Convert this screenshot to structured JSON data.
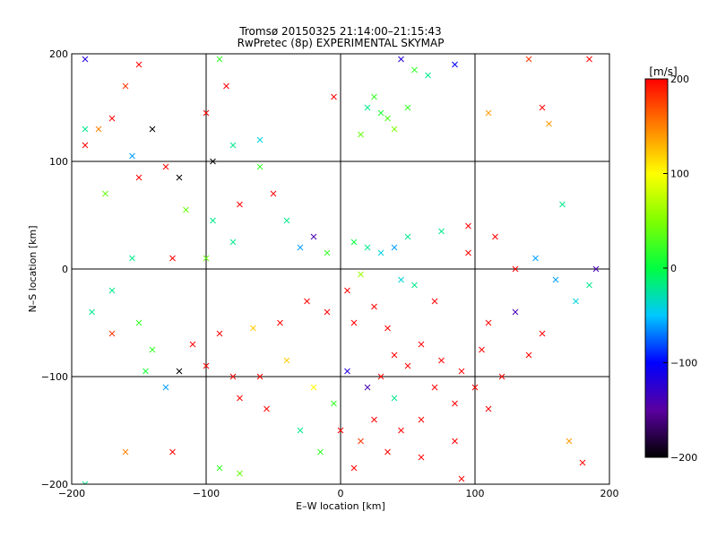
{
  "chart_data": {
    "type": "scatter",
    "title": "Tromsø 20150325 21:14:00–21:15:43",
    "subtitle": "RwPretec (8p) EXPERIMENTAL SKYMAP",
    "xlabel": "E–W location [km]",
    "ylabel": "N–S location [km]",
    "xlim": [
      -200,
      200
    ],
    "ylim": [
      -200,
      200
    ],
    "xticks": [
      -200,
      -100,
      0,
      100,
      200
    ],
    "yticks": [
      -200,
      -100,
      0,
      100,
      200
    ],
    "grid": true,
    "colorbar": {
      "label": "[m/s]",
      "min": -200,
      "max": 200,
      "ticks": [
        200,
        100,
        0,
        -100,
        -200
      ],
      "placement": "right"
    },
    "markers": [
      "point",
      "x"
    ],
    "points": [
      {
        "x": 185,
        "y": 195,
        "v": 200,
        "m": "x"
      },
      {
        "x": 140,
        "y": 195,
        "v": 180,
        "m": "x"
      },
      {
        "x": 55,
        "y": 185,
        "v": 20,
        "m": "x"
      },
      {
        "x": 65,
        "y": 180,
        "v": -20,
        "m": "x"
      },
      {
        "x": 85,
        "y": 190,
        "v": -100,
        "m": "x"
      },
      {
        "x": 45,
        "y": 195,
        "v": -120,
        "m": "x"
      },
      {
        "x": 25,
        "y": 160,
        "v": 20,
        "m": "x"
      },
      {
        "x": 30,
        "y": 145,
        "v": 10,
        "m": "x"
      },
      {
        "x": 35,
        "y": 140,
        "v": 30,
        "m": "x"
      },
      {
        "x": 20,
        "y": 150,
        "v": -20,
        "m": "x"
      },
      {
        "x": 40,
        "y": 130,
        "v": 50,
        "m": "x"
      },
      {
        "x": 15,
        "y": 125,
        "v": 40,
        "m": "x"
      },
      {
        "x": 50,
        "y": 150,
        "v": 20,
        "m": "x"
      },
      {
        "x": 110,
        "y": 145,
        "v": 140,
        "m": "x"
      },
      {
        "x": 150,
        "y": 150,
        "v": 200,
        "m": "x"
      },
      {
        "x": 155,
        "y": 135,
        "v": 140,
        "m": "x"
      },
      {
        "x": -190,
        "y": 195,
        "v": -120,
        "m": "x"
      },
      {
        "x": -150,
        "y": 190,
        "v": 200,
        "m": "x"
      },
      {
        "x": -160,
        "y": 170,
        "v": 180,
        "m": "x"
      },
      {
        "x": -190,
        "y": 130,
        "v": -20,
        "m": "x"
      },
      {
        "x": -180,
        "y": 130,
        "v": 150,
        "m": "x"
      },
      {
        "x": -170,
        "y": 140,
        "v": 200,
        "m": "x"
      },
      {
        "x": -140,
        "y": 130,
        "v": -200,
        "m": "x"
      },
      {
        "x": -100,
        "y": 145,
        "v": 200,
        "m": "x"
      },
      {
        "x": -90,
        "y": 195,
        "v": 20,
        "m": "x"
      },
      {
        "x": -85,
        "y": 170,
        "v": 200,
        "m": "x"
      },
      {
        "x": -80,
        "y": 115,
        "v": -20,
        "m": "x"
      },
      {
        "x": -60,
        "y": 120,
        "v": -40,
        "m": "x"
      },
      {
        "x": -155,
        "y": 105,
        "v": -60,
        "m": "x"
      },
      {
        "x": -190,
        "y": 115,
        "v": 200,
        "m": "x"
      },
      {
        "x": -130,
        "y": 95,
        "v": 200,
        "m": "x"
      },
      {
        "x": -150,
        "y": 85,
        "v": 200,
        "m": "x"
      },
      {
        "x": -120,
        "y": 85,
        "v": -200,
        "m": "x"
      },
      {
        "x": -175,
        "y": 70,
        "v": 40,
        "m": "x"
      },
      {
        "x": -115,
        "y": 55,
        "v": 40,
        "m": "x"
      },
      {
        "x": -95,
        "y": 45,
        "v": -20,
        "m": "x"
      },
      {
        "x": -75,
        "y": 60,
        "v": 200,
        "m": "x"
      },
      {
        "x": -50,
        "y": 70,
        "v": 200,
        "m": "x"
      },
      {
        "x": -40,
        "y": 45,
        "v": -20,
        "m": "x"
      },
      {
        "x": -30,
        "y": 20,
        "v": -60,
        "m": "x"
      },
      {
        "x": -20,
        "y": 30,
        "v": -140,
        "m": "x"
      },
      {
        "x": -10,
        "y": 15,
        "v": 20,
        "m": "x"
      },
      {
        "x": 10,
        "y": 25,
        "v": 0,
        "m": "x"
      },
      {
        "x": 20,
        "y": 20,
        "v": -20,
        "m": "x"
      },
      {
        "x": 30,
        "y": 15,
        "v": -40,
        "m": "x"
      },
      {
        "x": 40,
        "y": 20,
        "v": -60,
        "m": "x"
      },
      {
        "x": 50,
        "y": 30,
        "v": -20,
        "m": "x"
      },
      {
        "x": 45,
        "y": -10,
        "v": -40,
        "m": "x"
      },
      {
        "x": 55,
        "y": -15,
        "v": -20,
        "m": "x"
      },
      {
        "x": 15,
        "y": -5,
        "v": 60,
        "m": "x"
      },
      {
        "x": 5,
        "y": -20,
        "v": 200,
        "m": "x"
      },
      {
        "x": 25,
        "y": -35,
        "v": 200,
        "m": "x"
      },
      {
        "x": 10,
        "y": -50,
        "v": 200,
        "m": "x"
      },
      {
        "x": 35,
        "y": -55,
        "v": 200,
        "m": "x"
      },
      {
        "x": -10,
        "y": -40,
        "v": 200,
        "m": "x"
      },
      {
        "x": -25,
        "y": -30,
        "v": 200,
        "m": "x"
      },
      {
        "x": 60,
        "y": -70,
        "v": 200,
        "m": "x"
      },
      {
        "x": 75,
        "y": -85,
        "v": 200,
        "m": "x"
      },
      {
        "x": 90,
        "y": -95,
        "v": 200,
        "m": "x"
      },
      {
        "x": 50,
        "y": -90,
        "v": 200,
        "m": "x"
      },
      {
        "x": 70,
        "y": -110,
        "v": 200,
        "m": "x"
      },
      {
        "x": 85,
        "y": -125,
        "v": 200,
        "m": "x"
      },
      {
        "x": 60,
        "y": -140,
        "v": 200,
        "m": "x"
      },
      {
        "x": 40,
        "y": -120,
        "v": -20,
        "m": "x"
      },
      {
        "x": 20,
        "y": -110,
        "v": -140,
        "m": "x"
      },
      {
        "x": 5,
        "y": -95,
        "v": -120,
        "m": "x"
      },
      {
        "x": -5,
        "y": -125,
        "v": 20,
        "m": "x"
      },
      {
        "x": -20,
        "y": -110,
        "v": 100,
        "m": "x"
      },
      {
        "x": -30,
        "y": -150,
        "v": -20,
        "m": "x"
      },
      {
        "x": 15,
        "y": -160,
        "v": 180,
        "m": "x"
      },
      {
        "x": 35,
        "y": -170,
        "v": 200,
        "m": "x"
      },
      {
        "x": 60,
        "y": -175,
        "v": 200,
        "m": "x"
      },
      {
        "x": 85,
        "y": -160,
        "v": 200,
        "m": "x"
      },
      {
        "x": 110,
        "y": -130,
        "v": 200,
        "m": "x"
      },
      {
        "x": 120,
        "y": -100,
        "v": 200,
        "m": "x"
      },
      {
        "x": 140,
        "y": -80,
        "v": 200,
        "m": "x"
      },
      {
        "x": 150,
        "y": -60,
        "v": 200,
        "m": "x"
      },
      {
        "x": 160,
        "y": -10,
        "v": -60,
        "m": "x"
      },
      {
        "x": 175,
        "y": -30,
        "v": -40,
        "m": "x"
      },
      {
        "x": 185,
        "y": -15,
        "v": -20,
        "m": "x"
      },
      {
        "x": 190,
        "y": 0,
        "v": -140,
        "m": "x"
      },
      {
        "x": 130,
        "y": 0,
        "v": 200,
        "m": "x"
      },
      {
        "x": 145,
        "y": 10,
        "v": -60,
        "m": "x"
      },
      {
        "x": 95,
        "y": 40,
        "v": 200,
        "m": "x"
      },
      {
        "x": 115,
        "y": 30,
        "v": 200,
        "m": "x"
      },
      {
        "x": 165,
        "y": 60,
        "v": -20,
        "m": "x"
      },
      {
        "x": -185,
        "y": -40,
        "v": -20,
        "m": "x"
      },
      {
        "x": -170,
        "y": -60,
        "v": 180,
        "m": "x"
      },
      {
        "x": -150,
        "y": -50,
        "v": 20,
        "m": "x"
      },
      {
        "x": -140,
        "y": -75,
        "v": 20,
        "m": "x"
      },
      {
        "x": -145,
        "y": -95,
        "v": 10,
        "m": "x"
      },
      {
        "x": -130,
        "y": -110,
        "v": -60,
        "m": "x"
      },
      {
        "x": -120,
        "y": -95,
        "v": -200,
        "m": "x"
      },
      {
        "x": -110,
        "y": -70,
        "v": 200,
        "m": "x"
      },
      {
        "x": -100,
        "y": -90,
        "v": 200,
        "m": "x"
      },
      {
        "x": -80,
        "y": -100,
        "v": 200,
        "m": "x"
      },
      {
        "x": -75,
        "y": -120,
        "v": 200,
        "m": "x"
      },
      {
        "x": -60,
        "y": -100,
        "v": 200,
        "m": "x"
      },
      {
        "x": -55,
        "y": -130,
        "v": 200,
        "m": "x"
      },
      {
        "x": -40,
        "y": -85,
        "v": 120,
        "m": "x"
      },
      {
        "x": -90,
        "y": -60,
        "v": 200,
        "m": "x"
      },
      {
        "x": -65,
        "y": -55,
        "v": 120,
        "m": "x"
      },
      {
        "x": -45,
        "y": -50,
        "v": 200,
        "m": "x"
      },
      {
        "x": -160,
        "y": -170,
        "v": 150,
        "m": "x"
      },
      {
        "x": -125,
        "y": -170,
        "v": 200,
        "m": "x"
      },
      {
        "x": -90,
        "y": -185,
        "v": 20,
        "m": "x"
      },
      {
        "x": -75,
        "y": -190,
        "v": 40,
        "m": "x"
      },
      {
        "x": -190,
        "y": -200,
        "v": -20,
        "m": "x"
      },
      {
        "x": 90,
        "y": -195,
        "v": 200,
        "m": "x"
      },
      {
        "x": 170,
        "y": -160,
        "v": 140,
        "m": "x"
      },
      {
        "x": 180,
        "y": -180,
        "v": 200,
        "m": "x"
      },
      {
        "x": -5,
        "y": 160,
        "v": 200,
        "m": "x"
      },
      {
        "x": -95,
        "y": 100,
        "v": -200,
        "m": "x"
      },
      {
        "x": -60,
        "y": 95,
        "v": 20,
        "m": "x"
      },
      {
        "x": -80,
        "y": 25,
        "v": -20,
        "m": "x"
      },
      {
        "x": -100,
        "y": 10,
        "v": 40,
        "m": "x"
      },
      {
        "x": -125,
        "y": 10,
        "v": 200,
        "m": "x"
      },
      {
        "x": -155,
        "y": 10,
        "v": -20,
        "m": "x"
      },
      {
        "x": -170,
        "y": -20,
        "v": -20,
        "m": "x"
      },
      {
        "x": 75,
        "y": 35,
        "v": -20,
        "m": "x"
      },
      {
        "x": 95,
        "y": 15,
        "v": 200,
        "m": "x"
      },
      {
        "x": 70,
        "y": -30,
        "v": 200,
        "m": "x"
      },
      {
        "x": 110,
        "y": -50,
        "v": 200,
        "m": "x"
      },
      {
        "x": 130,
        "y": -40,
        "v": -140,
        "m": "x"
      },
      {
        "x": 105,
        "y": -75,
        "v": 200,
        "m": "x"
      },
      {
        "x": 100,
        "y": -110,
        "v": 200,
        "m": "x"
      },
      {
        "x": 40,
        "y": -80,
        "v": 200,
        "m": "x"
      },
      {
        "x": 30,
        "y": -100,
        "v": 200,
        "m": "x"
      },
      {
        "x": 25,
        "y": -140,
        "v": 200,
        "m": "x"
      },
      {
        "x": 45,
        "y": -150,
        "v": 200,
        "m": "x"
      },
      {
        "x": 0,
        "y": -150,
        "v": 200,
        "m": "x"
      },
      {
        "x": -15,
        "y": -170,
        "v": 20,
        "m": "x"
      },
      {
        "x": 10,
        "y": -185,
        "v": 200,
        "m": "x"
      }
    ]
  }
}
